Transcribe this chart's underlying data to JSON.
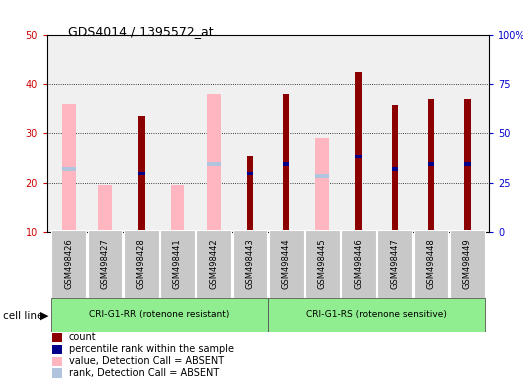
{
  "title": "GDS4014 / 1395572_at",
  "samples": [
    "GSM498426",
    "GSM498427",
    "GSM498428",
    "GSM498441",
    "GSM498442",
    "GSM498443",
    "GSM498444",
    "GSM498445",
    "GSM498446",
    "GSM498447",
    "GSM498448",
    "GSM498449"
  ],
  "count_values": [
    0,
    0,
    33.5,
    0,
    0,
    25.5,
    38.0,
    0,
    42.5,
    35.8,
    37.0,
    37.0
  ],
  "rank_values": [
    22.5,
    0,
    21.5,
    0,
    23.5,
    21.5,
    23.5,
    21.0,
    25.0,
    22.5,
    23.5,
    23.5
  ],
  "absent_value": [
    36.0,
    19.5,
    0,
    19.5,
    38.0,
    0,
    0,
    29.0,
    0,
    0,
    0,
    0
  ],
  "absent_rank": [
    22.5,
    0,
    0,
    0,
    23.5,
    0,
    0,
    21.0,
    0,
    0,
    0,
    0
  ],
  "group1_count": 6,
  "group1_label": "CRI-G1-RR (rotenone resistant)",
  "group2_label": "CRI-G1-RS (rotenone sensitive)",
  "group_color": "#90ee90",
  "cell_line_label": "cell line",
  "ylim_left": [
    10,
    50
  ],
  "ylim_right": [
    0,
    100
  ],
  "yticks_left": [
    10,
    20,
    30,
    40,
    50
  ],
  "yticks_right": [
    0,
    25,
    50,
    75,
    100
  ],
  "grid_values": [
    20,
    30,
    40
  ],
  "bar_color_count": "#8B0000",
  "bar_color_rank": "#00008B",
  "bar_color_absent_value": "#FFB6C1",
  "bar_color_absent_rank": "#B0C4DE",
  "background_plot": "#f0f0f0",
  "background_fig": "#ffffff",
  "tick_label_color_left": "#cc0000",
  "tick_label_color_right": "#0000cc",
  "label_box_color": "#c8c8c8"
}
